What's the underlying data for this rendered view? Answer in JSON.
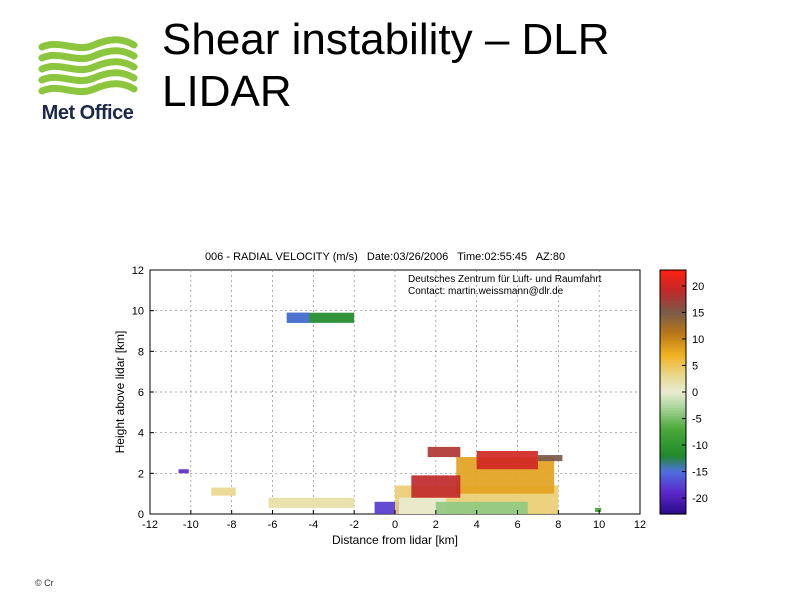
{
  "slide": {
    "title_line1": "Shear instability – DLR",
    "title_line2": "LIDAR",
    "logo_text": "Met Office",
    "footer_text": "© Cr"
  },
  "colors": {
    "logo_green": "#8cc63f",
    "logo_text": "#1c2a4a"
  },
  "chart_data": {
    "type": "heatmap",
    "title": "006 - RADIAL VELOCITY (m/s)   Date:03/26/2006   Time:02:55:45   AZ:80",
    "annotation_line1": "Deutsches Zentrum für Luft- und Raumfahrt",
    "annotation_line2": "Contact: martin.weissmann@dlr.de",
    "xlabel": "Distance from lidar [km]",
    "ylabel": "Height above lidar [km]",
    "xlim": [
      -12,
      12
    ],
    "ylim": [
      0,
      12
    ],
    "xticks": [
      "-12",
      "-10",
      "-8",
      "-6",
      "-4",
      "-2",
      "0",
      "2",
      "4",
      "6",
      "8",
      "10",
      "12"
    ],
    "yticks": [
      "0",
      "2",
      "4",
      "6",
      "8",
      "10",
      "12"
    ],
    "grid": true,
    "colorbar": {
      "range": [
        -23,
        23
      ],
      "ticks": [
        "20",
        "15",
        "10",
        "5",
        "0",
        "-5",
        "-10",
        "-15",
        "-20"
      ],
      "stops": [
        {
          "v": -23,
          "c": "#2a0a8a"
        },
        {
          "v": -19,
          "c": "#5a28c8"
        },
        {
          "v": -15,
          "c": "#4f6fe0"
        },
        {
          "v": -12,
          "c": "#1f8a2a"
        },
        {
          "v": -7,
          "c": "#4aa83a"
        },
        {
          "v": -3,
          "c": "#a8d49a"
        },
        {
          "v": 0,
          "c": "#e8ecd0"
        },
        {
          "v": 3,
          "c": "#e8d890"
        },
        {
          "v": 7,
          "c": "#f0b020"
        },
        {
          "v": 11,
          "c": "#b87818"
        },
        {
          "v": 15,
          "c": "#7a5a4a"
        },
        {
          "v": 19,
          "c": "#c02a2a"
        },
        {
          "v": 23,
          "c": "#ff2010"
        }
      ]
    },
    "regions": [
      {
        "x0": -5.3,
        "x1": -2.0,
        "y0": 9.4,
        "y1": 9.9,
        "v": -12
      },
      {
        "x0": -5.3,
        "x1": -4.2,
        "y0": 9.4,
        "y1": 9.9,
        "v": -15
      },
      {
        "x0": -10.6,
        "x1": -10.1,
        "y0": 2.0,
        "y1": 2.2,
        "v": -19
      },
      {
        "x0": -9.0,
        "x1": -7.8,
        "y0": 0.9,
        "y1": 1.3,
        "v": 3
      },
      {
        "x0": -6.2,
        "x1": -2.0,
        "y0": 0.3,
        "y1": 0.8,
        "v": 2
      },
      {
        "x0": -1.0,
        "x1": 0.3,
        "y0": 0.0,
        "y1": 0.6,
        "v": -18
      },
      {
        "x0": 0.0,
        "x1": 8.0,
        "y0": 0.0,
        "y1": 1.4,
        "v": 4
      },
      {
        "x0": 0.2,
        "x1": 2.5,
        "y0": 0.0,
        "y1": 0.8,
        "v": 0
      },
      {
        "x0": 2.0,
        "x1": 6.5,
        "y0": 0.0,
        "y1": 0.6,
        "v": -4
      },
      {
        "x0": 3.0,
        "x1": 7.8,
        "y0": 1.0,
        "y1": 2.8,
        "v": 8
      },
      {
        "x0": 1.6,
        "x1": 3.2,
        "y0": 2.8,
        "y1": 3.3,
        "v": 18
      },
      {
        "x0": 4.0,
        "x1": 7.0,
        "y0": 2.2,
        "y1": 3.1,
        "v": 20
      },
      {
        "x0": 0.8,
        "x1": 3.2,
        "y0": 0.8,
        "y1": 1.9,
        "v": 19
      },
      {
        "x0": 7.0,
        "x1": 8.2,
        "y0": 2.6,
        "y1": 2.9,
        "v": 15
      },
      {
        "x0": 9.8,
        "x1": 10.1,
        "y0": 0.1,
        "y1": 0.3,
        "v": -8
      }
    ]
  }
}
